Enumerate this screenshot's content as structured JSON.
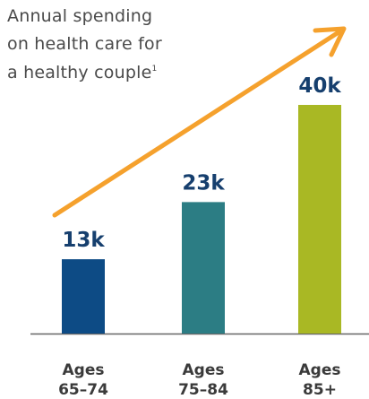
{
  "chart_data": {
    "type": "bar",
    "title_lines": [
      "Annual spending",
      "on health care for",
      "a healthy couple"
    ],
    "title_footnote": "1",
    "categories": [
      {
        "line1": "Ages",
        "line2": "65–74"
      },
      {
        "line1": "Ages",
        "line2": "75–84"
      },
      {
        "line1": "Ages",
        "line2": "85+"
      }
    ],
    "values": [
      13,
      23,
      40
    ],
    "value_labels": [
      "13k",
      "23k",
      "40k"
    ],
    "unit": "k",
    "bar_colors": [
      "#0d4b85",
      "#2c7d84",
      "#a9b824"
    ],
    "label_color": "#163f6e",
    "category_label_color": "#3a3a3a",
    "trend_arrow_color": "#f5a12d",
    "axis_color": "#666666",
    "ylim": [
      0,
      40
    ],
    "grid": false,
    "legend": "none"
  }
}
